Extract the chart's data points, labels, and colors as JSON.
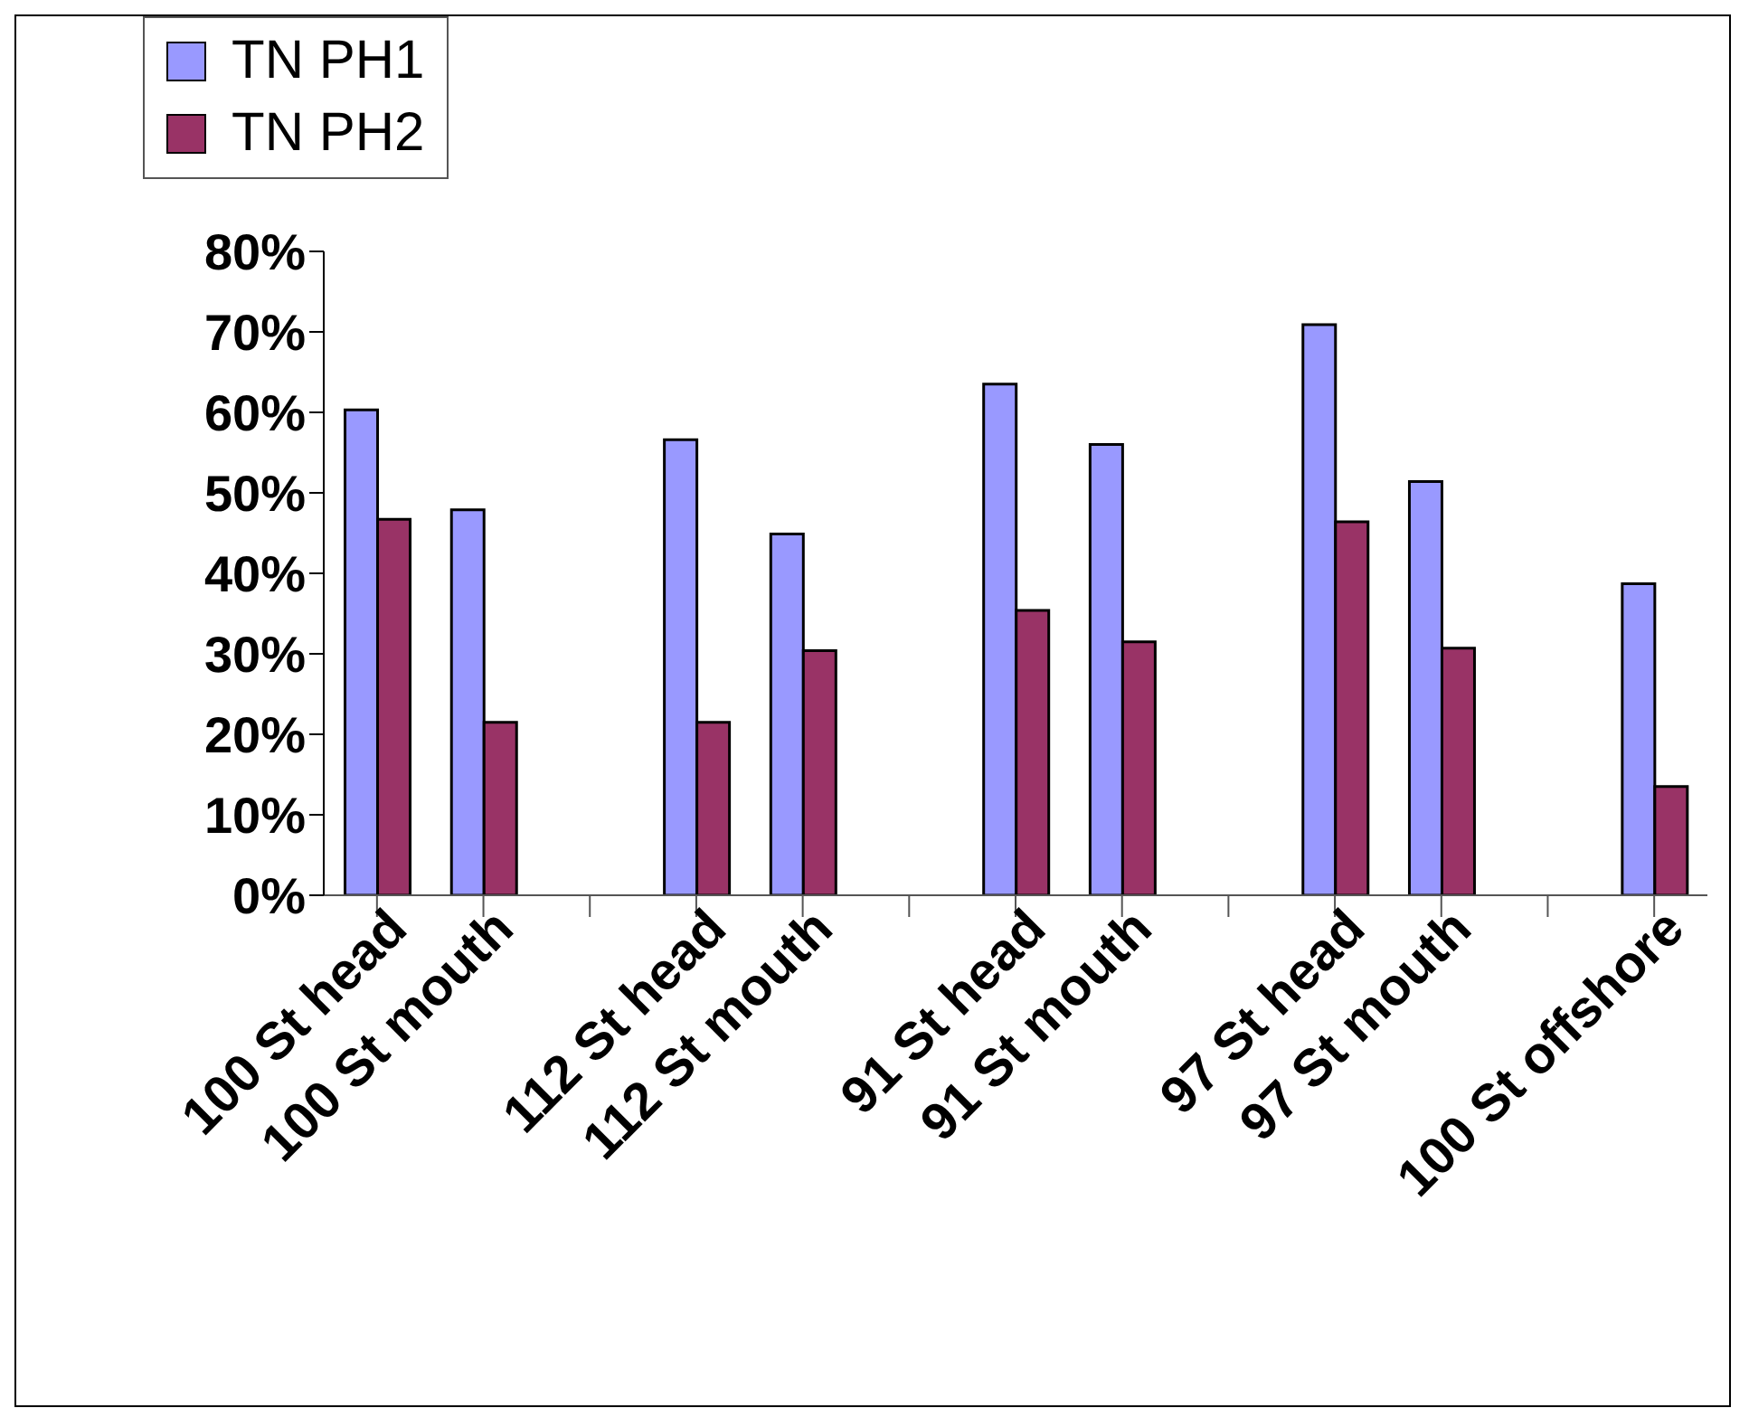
{
  "chart_data": {
    "type": "bar",
    "categories": [
      "100 St head",
      "100 St mouth",
      null,
      "112 St head",
      "112 St mouth",
      null,
      "91 St head",
      "91 St mouth",
      null,
      "97 St head",
      "97 St mouth",
      null,
      "100 St offshore"
    ],
    "series": [
      {
        "name": "TN PH1",
        "color": "#9999ff",
        "values": [
          60.3,
          47.9,
          null,
          56.6,
          44.9,
          null,
          63.5,
          56.0,
          null,
          70.9,
          51.4,
          null,
          38.7
        ]
      },
      {
        "name": "TN PH2",
        "color": "#993366",
        "values": [
          46.7,
          21.5,
          null,
          21.5,
          30.4,
          null,
          35.4,
          31.5,
          null,
          46.4,
          30.7,
          null,
          13.5
        ]
      }
    ],
    "ylim": [
      0,
      80
    ],
    "yticks": [
      {
        "value": 0,
        "label": "0%"
      },
      {
        "value": 10,
        "label": "10%"
      },
      {
        "value": 20,
        "label": "20%"
      },
      {
        "value": 30,
        "label": "30%"
      },
      {
        "value": 40,
        "label": "40%"
      },
      {
        "value": 50,
        "label": "50%"
      },
      {
        "value": 60,
        "label": "60%"
      },
      {
        "value": 70,
        "label": "70%"
      },
      {
        "value": 80,
        "label": "80%"
      }
    ],
    "grid": false,
    "legend": "top"
  }
}
